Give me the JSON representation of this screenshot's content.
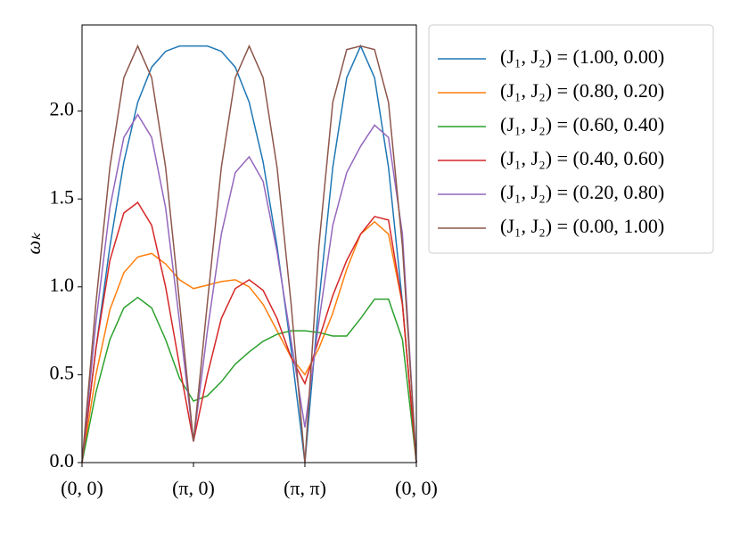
{
  "chart_data": {
    "type": "line",
    "y_label": "ωₖ",
    "x": [
      0,
      0.125,
      0.25,
      0.375,
      0.5,
      0.625,
      0.75,
      0.875,
      1,
      1.125,
      1.25,
      1.375,
      1.5,
      1.625,
      1.75,
      1.875,
      2,
      2.125,
      2.25,
      2.375,
      2.5,
      2.625,
      2.75,
      2.875,
      3
    ],
    "xlim": [
      0,
      3
    ],
    "xticks": [
      {
        "value": 0,
        "label": "(0, 0)"
      },
      {
        "value": 1,
        "label": "(π, 0)"
      },
      {
        "value": 2,
        "label": "(π, π)"
      },
      {
        "value": 3,
        "label": "(0, 0)"
      }
    ],
    "ylim": [
      0,
      2.49
    ],
    "yticks": [
      {
        "value": 0,
        "label": "0.0"
      },
      {
        "value": 0.5,
        "label": "0.5"
      },
      {
        "value": 1,
        "label": "1.0"
      },
      {
        "value": 1.5,
        "label": "1.5"
      },
      {
        "value": 2,
        "label": "2.0"
      }
    ],
    "grid": false,
    "legend": "outside-right",
    "series": [
      {
        "name": "(J₁, J₂) = (1.00, 0.00)",
        "color": "#1f77b4",
        "values": [
          0,
          0.65,
          1.23,
          1.71,
          2.05,
          2.25,
          2.34,
          2.37,
          2.37,
          2.37,
          2.34,
          2.25,
          2.05,
          1.71,
          1.23,
          0.65,
          0,
          0.91,
          1.68,
          2.19,
          2.37,
          2.19,
          1.68,
          0.91,
          0
        ]
      },
      {
        "name": "(J₁, J₂) = (0.80, 0.20)",
        "color": "#ff7f0e",
        "values": [
          0,
          0.5,
          0.87,
          1.08,
          1.17,
          1.19,
          1.13,
          1.04,
          0.99,
          1.01,
          1.03,
          1.04,
          1.0,
          0.9,
          0.75,
          0.6,
          0.5,
          0.65,
          0.85,
          1.1,
          1.3,
          1.37,
          1.3,
          0.9,
          0
        ]
      },
      {
        "name": "(J₁, J₂) = (0.60, 0.40)",
        "color": "#2ca02c",
        "values": [
          0,
          0.4,
          0.7,
          0.88,
          0.94,
          0.88,
          0.7,
          0.48,
          0.35,
          0.38,
          0.46,
          0.56,
          0.63,
          0.69,
          0.73,
          0.75,
          0.75,
          0.74,
          0.72,
          0.72,
          0.82,
          0.93,
          0.93,
          0.7,
          0
        ]
      },
      {
        "name": "(J₁, J₂) = (0.40, 0.60)",
        "color": "#d62728",
        "values": [
          0,
          0.65,
          1.15,
          1.42,
          1.48,
          1.35,
          1.0,
          0.55,
          0.12,
          0.5,
          0.82,
          0.99,
          1.04,
          0.98,
          0.82,
          0.6,
          0.45,
          0.7,
          0.95,
          1.15,
          1.3,
          1.4,
          1.38,
          0.9,
          0
        ]
      },
      {
        "name": "(J₁, J₂) = (0.20, 0.80)",
        "color": "#9467bd",
        "values": [
          0,
          0.8,
          1.45,
          1.85,
          1.98,
          1.85,
          1.45,
          0.8,
          0.12,
          0.75,
          1.3,
          1.65,
          1.74,
          1.6,
          1.2,
          0.7,
          0.2,
          0.8,
          1.35,
          1.65,
          1.8,
          1.92,
          1.85,
          1.3,
          0
        ]
      },
      {
        "name": "(J₁, J₂) = (0.00, 1.00)",
        "color": "#8c564b",
        "values": [
          0,
          0.91,
          1.68,
          2.19,
          2.37,
          2.19,
          1.68,
          0.91,
          0.12,
          0.91,
          1.68,
          2.19,
          2.37,
          2.19,
          1.68,
          0.91,
          0,
          1.23,
          2.05,
          2.35,
          2.37,
          2.35,
          2.05,
          1.23,
          0
        ]
      }
    ]
  }
}
